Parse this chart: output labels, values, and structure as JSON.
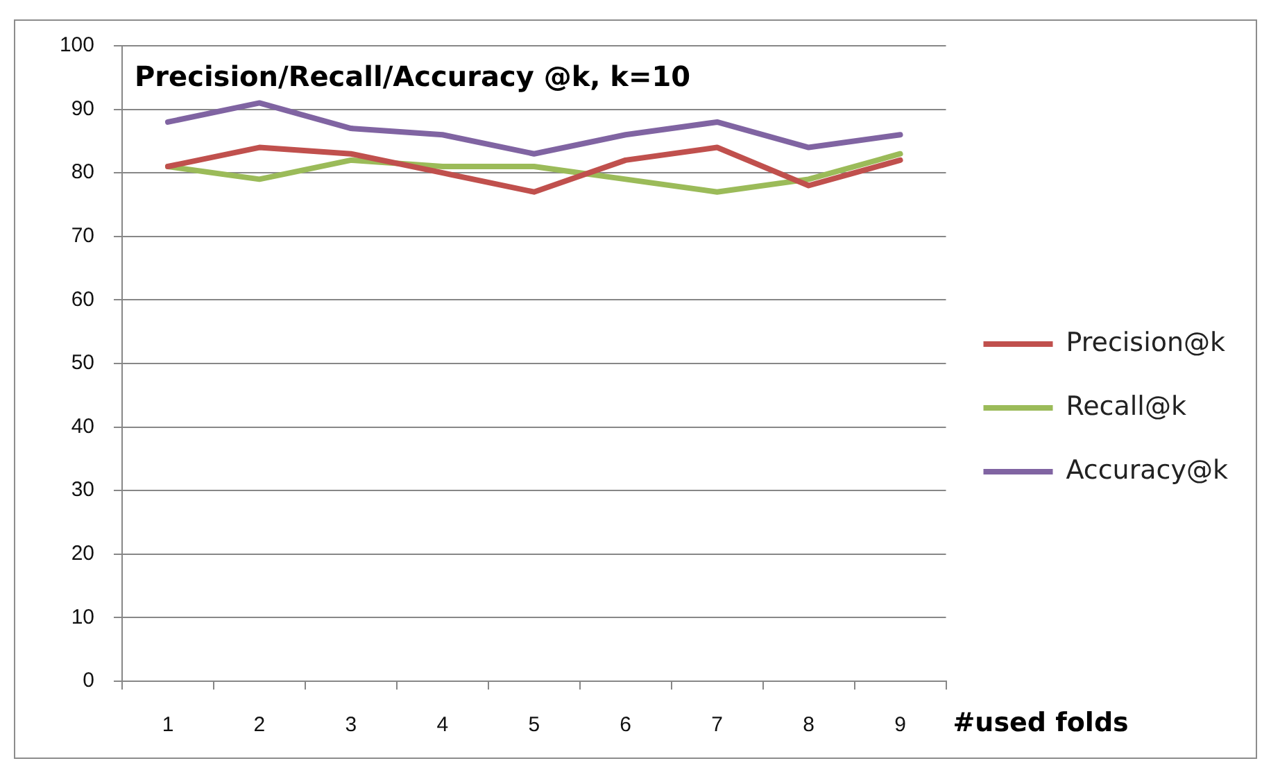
{
  "chart_data": {
    "type": "line",
    "title": "Precision/Recall/Accuracy @k, k=10",
    "xlabel": "#used folds",
    "categories": [
      "1",
      "2",
      "3",
      "4",
      "5",
      "6",
      "7",
      "8",
      "9"
    ],
    "series": [
      {
        "name": "Precision@k",
        "color": "#c0504d",
        "values": [
          81,
          84,
          83,
          80,
          77,
          82,
          84,
          78,
          82
        ]
      },
      {
        "name": "Recall@k",
        "color": "#9bbb59",
        "values": [
          81,
          79,
          82,
          81,
          81,
          79,
          77,
          79,
          83
        ]
      },
      {
        "name": "Accuracy@k",
        "color": "#8064a2",
        "values": [
          88,
          91,
          87,
          86,
          83,
          86,
          88,
          84,
          86
        ]
      }
    ],
    "ylim": [
      0,
      100
    ],
    "yticks": [
      0,
      10,
      20,
      30,
      40,
      50,
      60,
      70,
      80,
      90,
      100
    ],
    "grid": "y",
    "legend": "right",
    "marker": "none",
    "line_style": "solid"
  }
}
